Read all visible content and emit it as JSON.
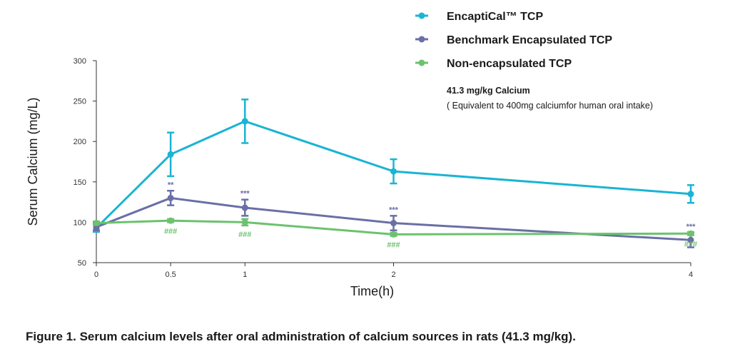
{
  "chart_data": {
    "type": "line",
    "xlabel": "Time(h)",
    "ylabel": "Serum Calcium (mg/L)",
    "x": [
      0,
      0.5,
      1,
      2,
      4
    ],
    "x_ticks": [
      0,
      0.5,
      1,
      2,
      4
    ],
    "x_tick_labels": [
      "0",
      "0.5",
      "1",
      "2",
      "4"
    ],
    "xlim": [
      0,
      4
    ],
    "ylim": [
      50,
      300
    ],
    "y_ticks": [
      50,
      100,
      150,
      200,
      250,
      300
    ],
    "y_tick_labels": [
      "50",
      "100",
      "150",
      "200",
      "250",
      "300"
    ],
    "grid": false,
    "legend_position": "top-right",
    "series": [
      {
        "name": "EncaptiCal™ TCP",
        "color": "#1ab4d4",
        "values": [
          93,
          184,
          225,
          163,
          135
        ],
        "errors": [
          5,
          27,
          27,
          15,
          11
        ],
        "markers": [
          "",
          "",
          "",
          "",
          ""
        ]
      },
      {
        "name": "Benchmark Encapsulated TCP",
        "color": "#6a6fa6",
        "values": [
          94,
          130,
          118,
          99,
          78
        ],
        "errors": [
          4,
          9,
          10,
          9,
          9
        ],
        "markers": [
          "",
          "**",
          "***",
          "***",
          "***"
        ]
      },
      {
        "name": "Non-encapsulated TCP",
        "color": "#6cc26e",
        "values": [
          99,
          102,
          100,
          85,
          86
        ],
        "errors": [
          2,
          2,
          4,
          2,
          2
        ],
        "markers": [
          "",
          "###",
          "###",
          "###",
          "###"
        ]
      }
    ],
    "annotation": {
      "title": "41.3 mg/kg Calcium",
      "text": "( Equivalent to 400mg calciumfor human oral intake)"
    }
  },
  "caption": "Figure 1. Serum calcium levels after oral administration of calcium sources in rats (41.3 mg/kg)."
}
